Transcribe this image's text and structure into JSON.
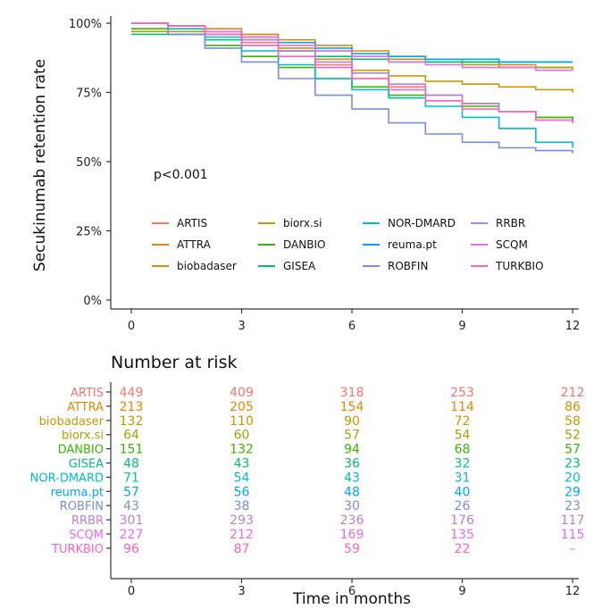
{
  "chart_data": {
    "type": "line",
    "ylabel": "Secukinumab retention rate",
    "xlabel": "Time in months",
    "annotation": "p<0.001",
    "risk_table_title": "Number at risk",
    "xlim": [
      0,
      12
    ],
    "ylim": [
      0,
      1
    ],
    "x_ticks": [
      0,
      3,
      6,
      9,
      12
    ],
    "y_ticks": [
      {
        "value": 0,
        "label": "0%"
      },
      {
        "value": 0.25,
        "label": "25%"
      },
      {
        "value": 0.5,
        "label": "50%"
      },
      {
        "value": 0.75,
        "label": "75%"
      },
      {
        "value": 1,
        "label": "100%"
      }
    ],
    "grid": false,
    "legend_placement": "inside-bottom",
    "series": [
      {
        "name": "ARTIS",
        "color": "#F8766D",
        "x": [
          0,
          1,
          2,
          3,
          4,
          5,
          6,
          7,
          8,
          9,
          10,
          11,
          12
        ],
        "y": [
          1.0,
          0.99,
          0.97,
          0.93,
          0.9,
          0.85,
          0.8,
          0.77,
          0.74,
          0.71,
          0.68,
          0.66,
          0.64
        ],
        "at_risk": [
          "449",
          "409",
          "318",
          "253",
          "212"
        ]
      },
      {
        "name": "ATTRA",
        "color": "#E58700",
        "x": [
          0,
          1,
          2,
          3,
          4,
          5,
          6,
          7,
          8,
          9,
          10,
          11,
          12
        ],
        "y": [
          1.0,
          0.99,
          0.98,
          0.96,
          0.94,
          0.92,
          0.9,
          0.88,
          0.87,
          0.86,
          0.85,
          0.84,
          0.84
        ],
        "at_risk": [
          "213",
          "205",
          "154",
          "114",
          "86"
        ]
      },
      {
        "name": "biobadaser",
        "color": "#C99800",
        "x": [
          0,
          1,
          2,
          3,
          4,
          5,
          6,
          7,
          8,
          9,
          10,
          11,
          12
        ],
        "y": [
          1.0,
          0.99,
          0.97,
          0.94,
          0.91,
          0.87,
          0.83,
          0.81,
          0.79,
          0.78,
          0.77,
          0.76,
          0.75
        ],
        "at_risk": [
          "132",
          "110",
          "90",
          "72",
          "58"
        ]
      },
      {
        "name": "biorx.si",
        "color": "#A3A500",
        "x": [
          0,
          1,
          2,
          3,
          4,
          5,
          6,
          7,
          8,
          9,
          10,
          11,
          12
        ],
        "y": [
          0.97,
          0.97,
          0.96,
          0.95,
          0.93,
          0.9,
          0.88,
          0.87,
          0.86,
          0.85,
          0.84,
          0.84,
          0.83
        ],
        "at_risk": [
          "64",
          "60",
          "57",
          "54",
          "52"
        ]
      },
      {
        "name": "DANBIO",
        "color": "#39B600",
        "x": [
          0,
          1,
          2,
          3,
          4,
          5,
          6,
          7,
          8,
          9,
          10,
          11,
          12
        ],
        "y": [
          0.98,
          0.96,
          0.92,
          0.88,
          0.84,
          0.8,
          0.77,
          0.74,
          0.72,
          0.7,
          0.68,
          0.66,
          0.64
        ],
        "at_risk": [
          "151",
          "132",
          "94",
          "68",
          "57"
        ]
      },
      {
        "name": "GISEA",
        "color": "#00BF7D",
        "x": [
          0,
          1,
          2,
          3,
          4,
          5,
          6,
          7,
          8,
          9,
          10,
          11,
          12
        ],
        "y": [
          0.96,
          0.96,
          0.94,
          0.92,
          0.9,
          0.88,
          0.87,
          0.86,
          0.86,
          0.86,
          0.86,
          0.86,
          0.86
        ],
        "at_risk": [
          "48",
          "43",
          "36",
          "32",
          "23"
        ]
      },
      {
        "name": "NOR-DMARD",
        "color": "#00BFC4",
        "x": [
          0,
          1,
          2,
          3,
          4,
          5,
          6,
          7,
          8,
          9,
          10,
          11,
          12
        ],
        "y": [
          1.0,
          0.98,
          0.95,
          0.9,
          0.85,
          0.8,
          0.76,
          0.73,
          0.7,
          0.66,
          0.62,
          0.57,
          0.55
        ],
        "at_risk": [
          "71",
          "54",
          "43",
          "31",
          "20"
        ]
      },
      {
        "name": "reuma.pt",
        "color": "#00A5FF",
        "x": [
          0,
          1,
          2,
          3,
          4,
          5,
          6,
          7,
          8,
          9,
          10,
          11,
          12
        ],
        "y": [
          1.0,
          0.99,
          0.97,
          0.95,
          0.93,
          0.91,
          0.89,
          0.88,
          0.87,
          0.87,
          0.86,
          0.86,
          0.86
        ],
        "at_risk": [
          "57",
          "56",
          "48",
          "40",
          "29"
        ]
      },
      {
        "name": "ROBFIN",
        "color": "#7B8BE0",
        "x": [
          0,
          1,
          2,
          3,
          4,
          5,
          6,
          7,
          8,
          9,
          10,
          11,
          12
        ],
        "y": [
          1.0,
          0.96,
          0.91,
          0.86,
          0.8,
          0.74,
          0.69,
          0.64,
          0.6,
          0.57,
          0.55,
          0.54,
          0.53
        ],
        "at_risk": [
          "43",
          "38",
          "30",
          "26",
          "23"
        ]
      },
      {
        "name": "RRBR",
        "color": "#B77FE0",
        "x": [
          0,
          1,
          2,
          3,
          4,
          5,
          6,
          7,
          8,
          9,
          10,
          11,
          12
        ],
        "y": [
          1.0,
          0.99,
          0.97,
          0.94,
          0.9,
          0.86,
          0.82,
          0.78,
          0.74,
          0.71,
          0.68,
          0.65,
          0.64
        ],
        "at_risk": [
          "301",
          "293",
          "236",
          "176",
          "117"
        ]
      },
      {
        "name": "SCQM",
        "color": "#E76BF3",
        "x": [
          0,
          1,
          2,
          3,
          4,
          5,
          6,
          7,
          8,
          9,
          10,
          11,
          12
        ],
        "y": [
          1.0,
          0.99,
          0.97,
          0.95,
          0.92,
          0.9,
          0.88,
          0.86,
          0.85,
          0.84,
          0.84,
          0.83,
          0.83
        ],
        "at_risk": [
          "227",
          "212",
          "169",
          "135",
          "115"
        ]
      },
      {
        "name": "TURKBIO",
        "color": "#FF62BC",
        "x": [
          0,
          1,
          2,
          3,
          4,
          5,
          6,
          7,
          8,
          9,
          10,
          11,
          12
        ],
        "y": [
          1.0,
          0.99,
          0.96,
          0.92,
          0.88,
          0.84,
          0.8,
          0.76,
          0.72,
          0.69,
          0.68,
          0.65,
          0.64
        ],
        "at_risk": [
          "96",
          "87",
          "59",
          "22",
          "–"
        ]
      }
    ]
  }
}
